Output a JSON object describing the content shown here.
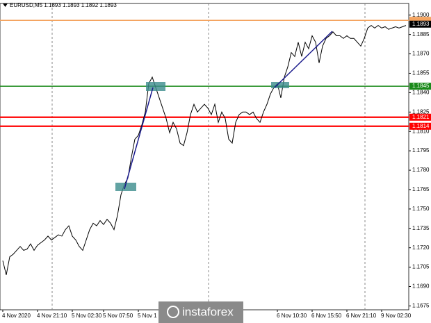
{
  "chart_data": {
    "type": "line",
    "title": "EURUSD,M5  1.1893 1.1893 1.1892 1.1893",
    "categories": [
      "4 Nov 2020",
      null,
      null,
      null,
      null,
      null,
      null,
      null,
      null,
      null,
      "4 Nov 21:10",
      null,
      null,
      null,
      null,
      null,
      null,
      null,
      null,
      null,
      "5 Nov 02:30",
      null,
      null,
      null,
      null,
      null,
      null,
      null,
      null,
      "5 Nov 07:50",
      null,
      null,
      null,
      null,
      null,
      null,
      null,
      null,
      null,
      "5 Nov 1",
      null,
      null,
      null,
      null,
      null,
      null,
      null,
      null,
      null,
      null,
      null,
      null,
      null,
      null,
      null,
      null,
      null,
      null,
      null,
      null,
      null,
      null,
      null,
      null,
      null,
      null,
      null,
      null,
      null,
      null,
      null,
      null,
      null,
      null,
      null,
      null,
      null,
      null,
      null,
      "6 Nov 10:30",
      null,
      null,
      null,
      null,
      null,
      null,
      null,
      null,
      null,
      "6 Nov 15:50",
      null,
      null,
      null,
      null,
      null,
      null,
      null,
      null,
      null,
      "6 Nov 21:10",
      null,
      null,
      null,
      null,
      null,
      null,
      null,
      null,
      null,
      "9 Nov 02:30",
      null,
      null,
      null,
      null,
      null,
      null,
      null
    ],
    "series": [
      {
        "color": "#000000",
        "values": [
          1.171,
          1.1699,
          1.1713,
          1.1715,
          1.1718,
          1.1721,
          1.1718,
          1.1719,
          1.1723,
          1.1718,
          1.1722,
          1.1724,
          1.1726,
          1.1729,
          1.1726,
          1.1728,
          1.173,
          1.1729,
          1.1734,
          1.1737,
          1.1729,
          1.1726,
          1.1721,
          1.1718,
          1.1726,
          1.1734,
          1.1739,
          1.1737,
          1.1741,
          1.1738,
          1.1742,
          1.1739,
          1.1734,
          1.1745,
          1.1761,
          1.1769,
          1.1774,
          1.179,
          1.1804,
          1.1807,
          1.1815,
          1.1825,
          1.1847,
          1.1852,
          1.1844,
          1.1836,
          1.1828,
          1.182,
          1.1809,
          1.1817,
          1.1812,
          1.1801,
          1.1799,
          1.1809,
          1.1823,
          1.1831,
          1.1825,
          1.1828,
          1.1831,
          1.1828,
          1.1823,
          1.1831,
          1.1817,
          1.1825,
          1.182,
          1.1804,
          1.1801,
          1.1817,
          1.1823,
          1.1825,
          1.1825,
          1.1823,
          1.1825,
          1.182,
          1.1817,
          1.1825,
          1.1831,
          1.1839,
          1.1844,
          1.1847,
          1.1836,
          1.1852,
          1.186,
          1.1871,
          1.1868,
          1.1879,
          1.1868,
          1.1879,
          1.1874,
          1.1884,
          1.1879,
          1.1863,
          1.1876,
          1.1882,
          1.1884,
          1.1887,
          1.1884,
          1.1884,
          1.1882,
          1.1884,
          1.1882,
          1.1882,
          1.1879,
          1.1876,
          1.1882,
          1.189,
          1.1892,
          1.189,
          1.1892,
          1.189,
          1.1891,
          1.1889,
          1.189,
          1.1891,
          1.189,
          1.1891,
          1.1892
        ]
      }
    ],
    "ylim": [
      1.1672,
      1.1909
    ],
    "yticks": [
      {
        "value": 1.19,
        "label": "1.1900"
      },
      1.1885,
      {
        "value": 1.187,
        "label": "1.1870"
      },
      1.1855,
      {
        "value": 1.184,
        "label": "1.1840"
      },
      1.1825,
      {
        "value": 1.181,
        "label": "1.1810"
      },
      1.1795,
      {
        "value": 1.178,
        "label": "1.1780"
      },
      1.1765,
      {
        "value": 1.175,
        "label": "1.1750"
      },
      1.1735,
      {
        "value": 1.172,
        "label": "1.1720"
      },
      1.1705,
      {
        "value": 1.169,
        "label": "1.1690"
      },
      1.1675
    ],
    "levels": [
      {
        "value": 1.1896,
        "color": "#f4a460"
      },
      {
        "value": 1.1845,
        "color": "#1a8a1a"
      },
      {
        "value": 1.1821,
        "color": "#ff0000"
      },
      {
        "value": 1.1814,
        "color": "#ff0000"
      }
    ],
    "level_labels": [
      1.1845,
      1.1821,
      1.1814
    ],
    "last_price": 1.1893,
    "watermark": "instaforex"
  }
}
